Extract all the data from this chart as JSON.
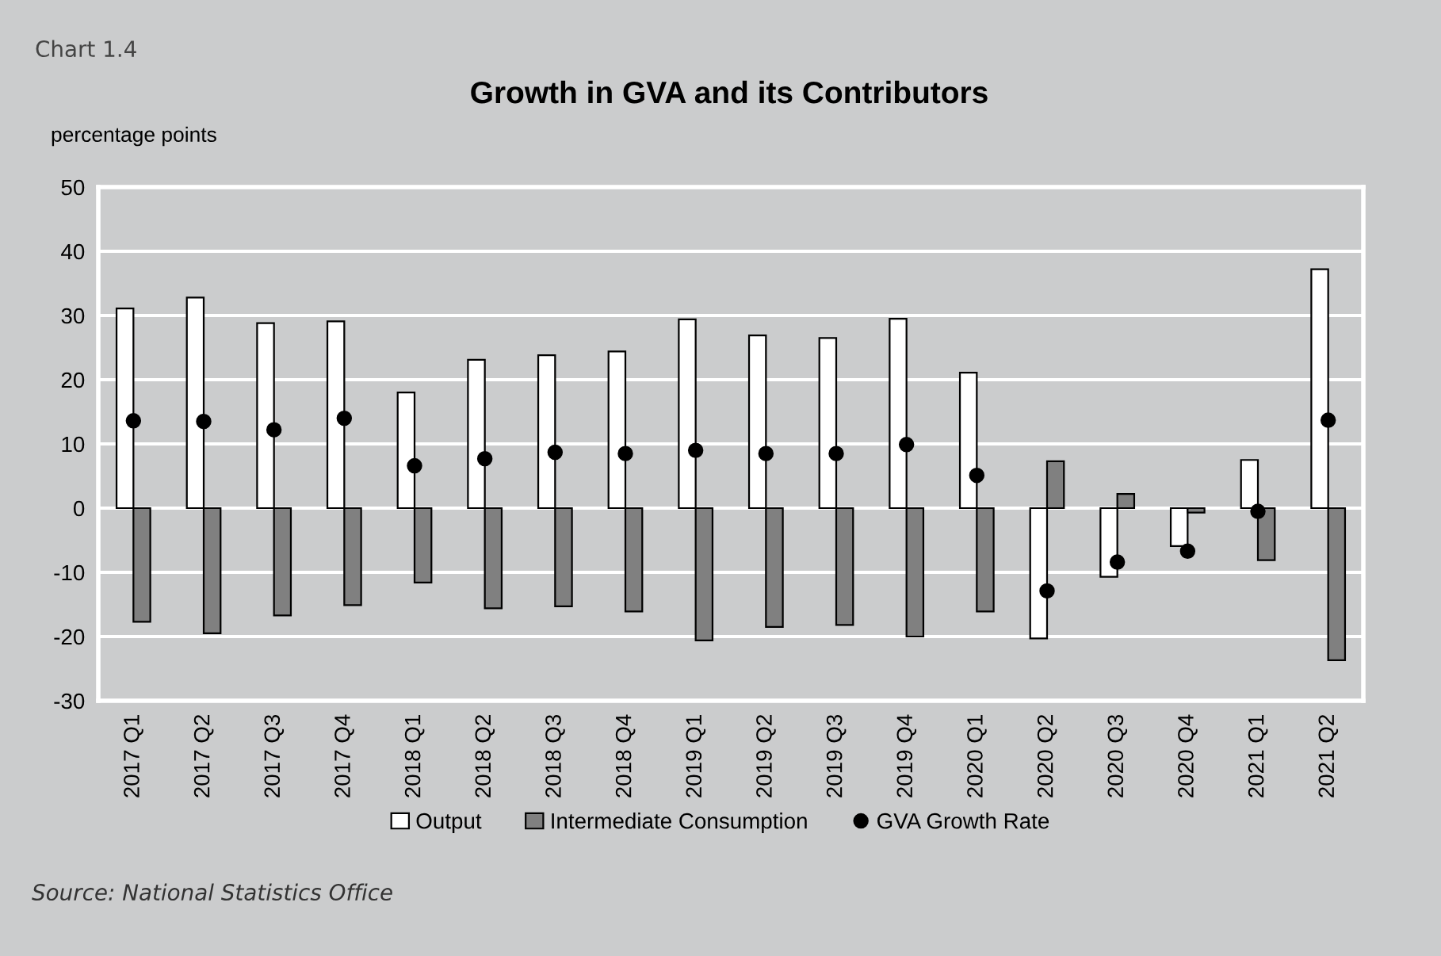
{
  "chart_data": {
    "type": "bar",
    "title": "Growth in GVA and its Contributors",
    "ylabel": "percentage points",
    "annotations": [
      "Chart 1.4",
      "Source: National Statistics Office"
    ],
    "categories": [
      "2017 Q1",
      "2017 Q2",
      "2017 Q3",
      "2017 Q4",
      "2018 Q1",
      "2018 Q2",
      "2018 Q3",
      "2018 Q4",
      "2019 Q1",
      "2019 Q2",
      "2019 Q3",
      "2019 Q4",
      "2020 Q1",
      "2020 Q2",
      "2020 Q3",
      "2020 Q4",
      "2021 Q1",
      "2021 Q2"
    ],
    "series": [
      {
        "name": "Output",
        "color": "#ffffff",
        "values": [
          31.1,
          32.8,
          28.8,
          29.1,
          18.0,
          23.1,
          23.8,
          24.4,
          29.4,
          26.9,
          26.5,
          29.5,
          21.1,
          -20.3,
          -10.7,
          -5.9,
          7.5,
          37.2
        ]
      },
      {
        "name": "Intermediate Consumption",
        "color": "#808080",
        "values": [
          -17.7,
          -19.5,
          -16.7,
          -15.1,
          -11.6,
          -15.6,
          -15.3,
          -16.1,
          -20.6,
          -18.5,
          -18.2,
          -20.0,
          -16.1,
          7.3,
          2.2,
          -0.7,
          -8.1,
          -23.7
        ]
      },
      {
        "name": "GVA Growth Rate",
        "type": "scatter",
        "color": "#000000",
        "marker": "circle",
        "values": [
          13.6,
          13.5,
          12.2,
          14.0,
          6.6,
          7.7,
          8.7,
          8.5,
          9.0,
          8.5,
          8.5,
          9.9,
          5.1,
          -12.9,
          -8.4,
          -6.7,
          -0.5,
          13.7
        ]
      }
    ],
    "ylim": [
      -30,
      50
    ],
    "yticks": [
      -30,
      -20,
      -10,
      0,
      10,
      20,
      30,
      40,
      50
    ],
    "grid": "y",
    "legend": "bottom"
  }
}
